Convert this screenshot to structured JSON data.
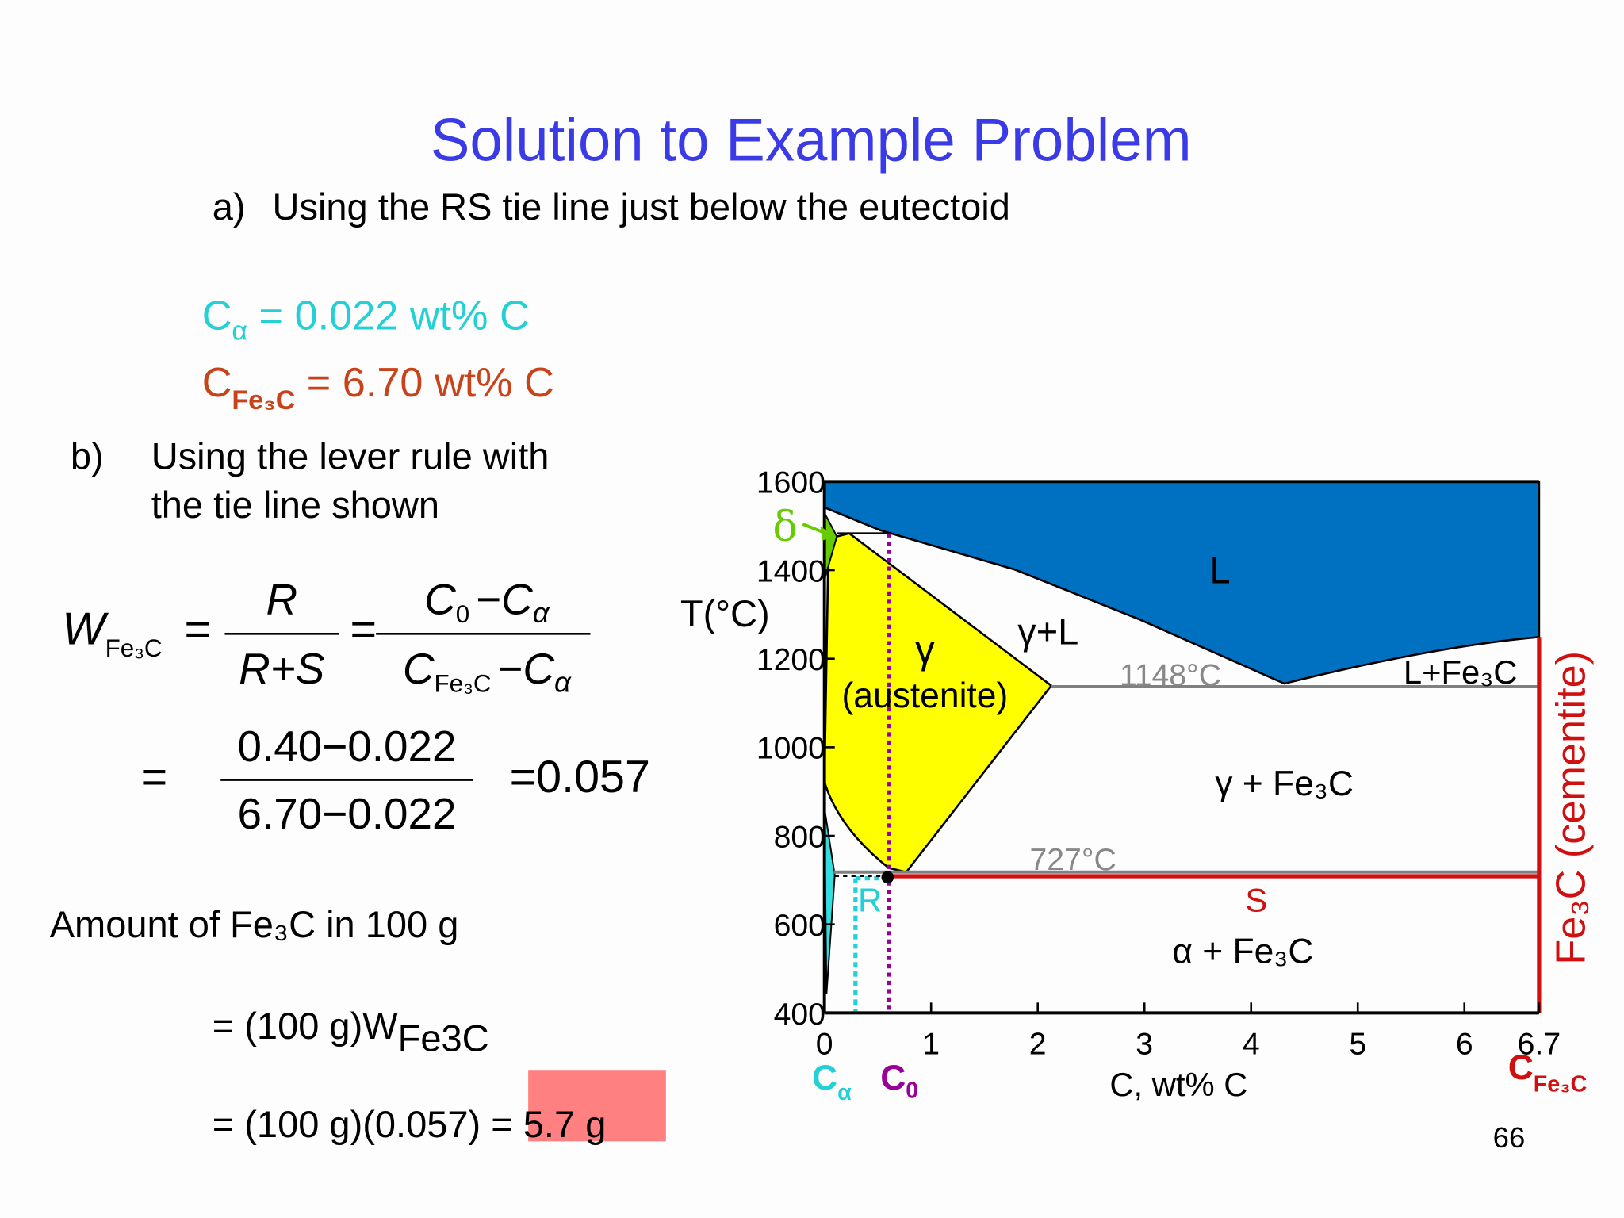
{
  "title": "Solution to Example Problem",
  "part_a": {
    "label": "a)",
    "text": "Using the RS tie line just below the eutectoid",
    "c_alpha": {
      "symbol": "C",
      "subscript": "α",
      "text": " = 0.022 wt% C"
    },
    "c_fe3c": {
      "symbol": "C",
      "subscript": "Fe₃C",
      "text": " = 6.70 wt% C"
    }
  },
  "part_b": {
    "label": "b)",
    "lines": [
      "Using the lever rule with",
      "the tie line shown"
    ]
  },
  "equation": {
    "lhs": {
      "symbol": "W",
      "subscript": "Fe₃C"
    },
    "eq": "=",
    "frac1": {
      "num": "R",
      "den": "R+S"
    },
    "frac2": {
      "num": {
        "a": "C",
        "a_sub": "0",
        "op": "−",
        "b": "C",
        "b_sub": "α"
      },
      "den": {
        "a": "C",
        "a_sub": "Fe₃C",
        "op": "−",
        "b": "C",
        "b_sub": "α"
      }
    },
    "line2": {
      "eq": "=",
      "num": "0.40−0.022",
      "den": "6.70−0.022",
      "result": "=0.057"
    }
  },
  "amount": {
    "text": "Amount of Fe₃C in 100 g",
    "line1": {
      "text": "= (100 g)W",
      "subscript": "Fe3C"
    },
    "line2": "= (100 g)(0.057) = 5.7 g"
  },
  "page_number": "66",
  "diagram": {
    "y_label": "T(°C)",
    "x_label": "C, wt% C",
    "xlim": [
      0,
      6.7
    ],
    "ylim": [
      400,
      1600
    ],
    "xticks": [
      0,
      1,
      2,
      3,
      4,
      5,
      6,
      6.7
    ],
    "yticks": [
      400,
      600,
      800,
      1000,
      1200,
      1400,
      1600
    ],
    "regions": {
      "liquid": "L",
      "gamma_liquid": "γ+L",
      "gamma": "γ",
      "austenite": "(austenite)",
      "l_fe3c": "L+Fe₃C",
      "gamma_fe3c": "γ + Fe₃C",
      "alpha_fe3c": "α + Fe₃C",
      "delta": "δ"
    },
    "eutectic": "1148°C",
    "eutectoid": "727°C",
    "R": "R",
    "S": "S",
    "c_alpha": {
      "symbol": "C",
      "subscript": "α"
    },
    "c_0": {
      "symbol": "C",
      "subscript": "0"
    },
    "c_fe3c": {
      "symbol": "C",
      "subscript": "Fe₃C"
    },
    "cementite": "Fe₃C (cementite)"
  }
}
